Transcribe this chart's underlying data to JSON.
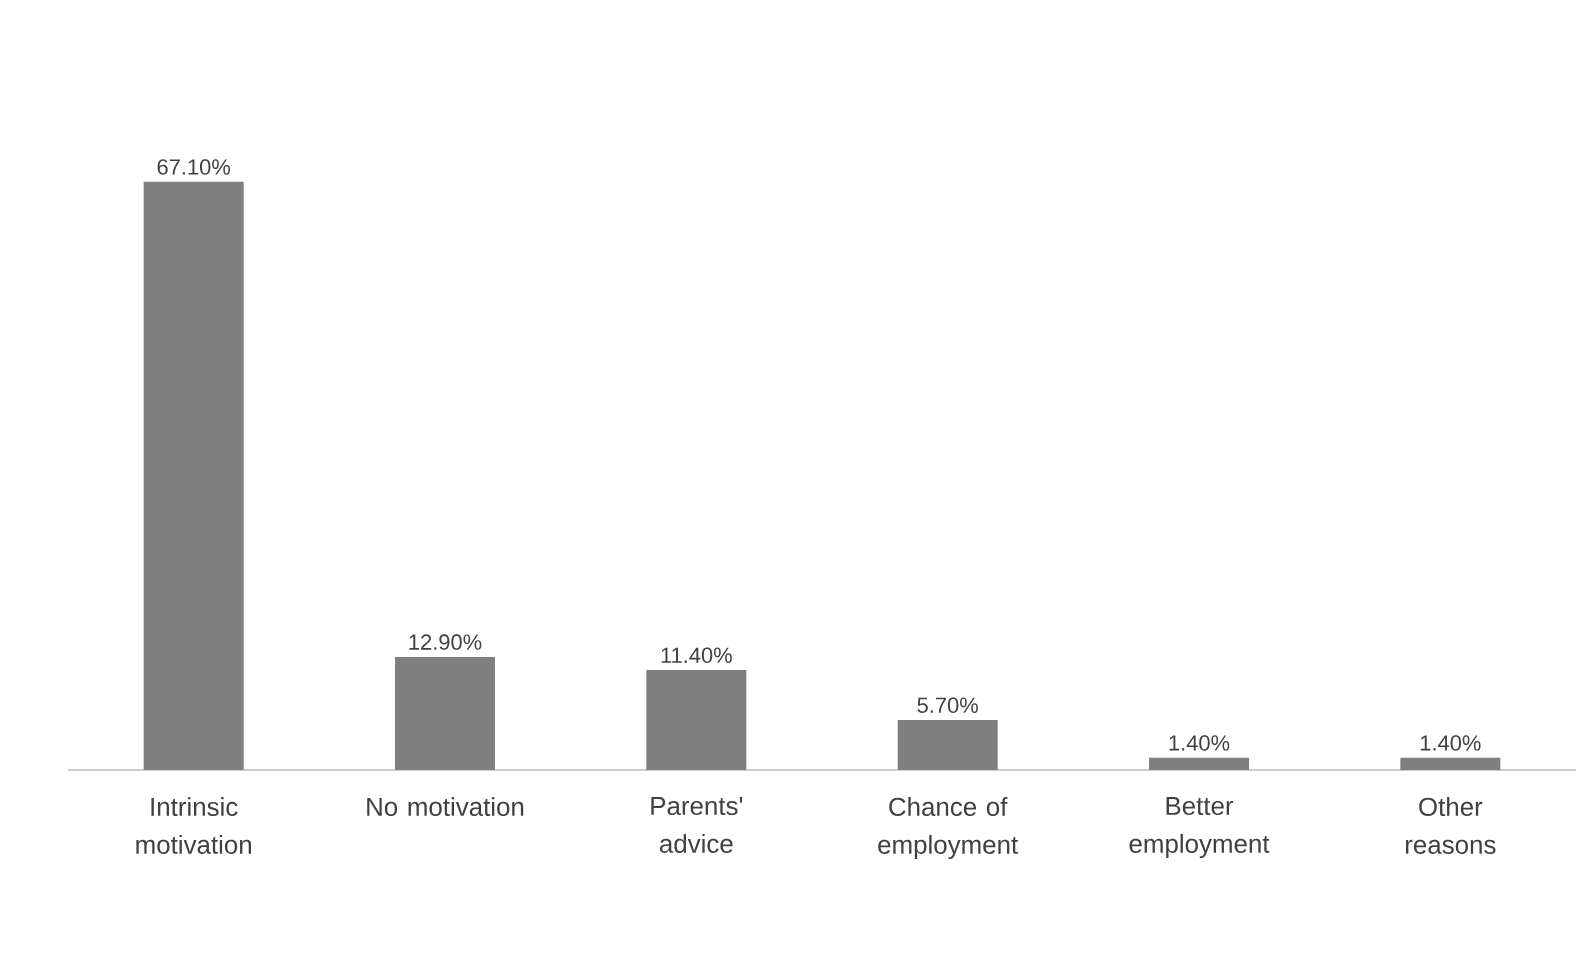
{
  "chart_data": {
    "type": "bar",
    "categories": [
      "Intrinsic motivation",
      "No motivation",
      "Parents' advice",
      "Chance of employment",
      "Better employment",
      "Other reasons"
    ],
    "values": [
      67.1,
      12.9,
      11.4,
      5.7,
      1.4,
      1.4
    ],
    "value_labels": [
      "67.10%",
      "12.90%",
      "11.40%",
      "5.70%",
      "1.40%",
      "1.40%"
    ],
    "color": "#7f7f7f"
  }
}
